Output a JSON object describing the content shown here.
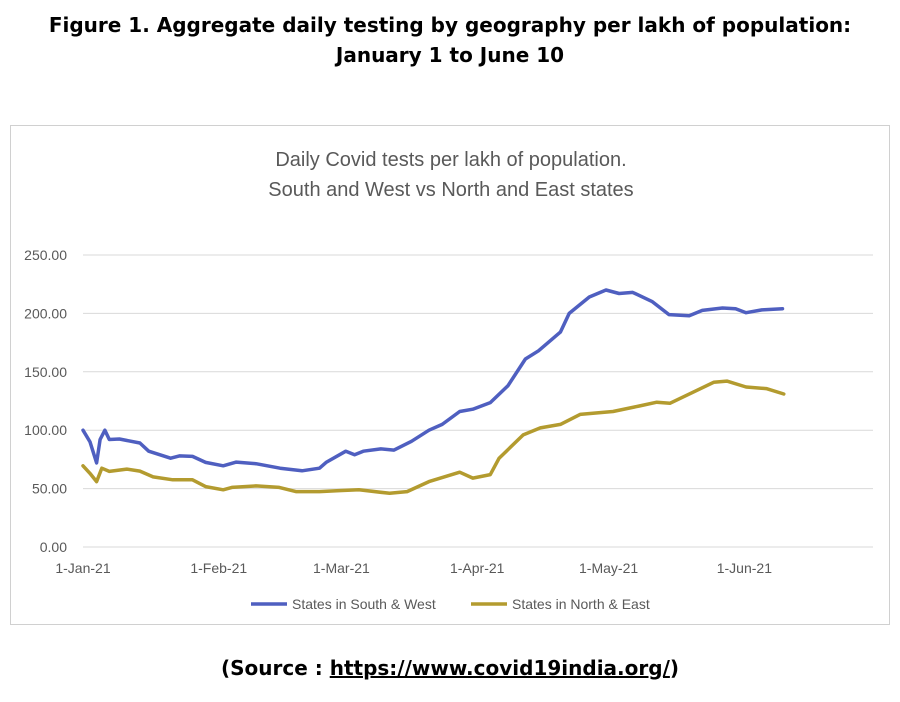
{
  "figure": {
    "title_line1": "Figure 1.  Aggregate daily testing by geography per lakh of population:",
    "title_line2": "January 1 to June 10"
  },
  "source": {
    "prefix": "(Source : ",
    "link": "https://www.covid19india.org/",
    "suffix": ")"
  },
  "chart_data": {
    "type": "line",
    "title": "Daily Covid tests per lakh of population.",
    "subtitle": "South and West vs North and East states",
    "xlabel": "",
    "ylabel": "",
    "x_unit": "days since 1-Jan-21",
    "xlim": [
      0,
      181
    ],
    "ylim": [
      0,
      250
    ],
    "grid": true,
    "legend_position": "bottom",
    "yticks": [
      0,
      50,
      100,
      150,
      200,
      250
    ],
    "ytick_labels": [
      "0.00",
      "50.00",
      "100.00",
      "150.00",
      "200.00",
      "250.00"
    ],
    "xticks": [
      0,
      31,
      59,
      90,
      120,
      151
    ],
    "xtick_labels": [
      "1-Jan-21",
      "1-Feb-21",
      "1-Mar-21",
      "1-Apr-21",
      "1-May-21",
      "1-Jun-21"
    ],
    "series": [
      {
        "name": "States in South & West",
        "color": "#4f5fc0",
        "points": [
          [
            0,
            100
          ],
          [
            1.6,
            90
          ],
          [
            3.1,
            72
          ],
          [
            3.9,
            92
          ],
          [
            5,
            100
          ],
          [
            6,
            92
          ],
          [
            8.3,
            92.5
          ],
          [
            13,
            89
          ],
          [
            15,
            82
          ],
          [
            20,
            76
          ],
          [
            22,
            78
          ],
          [
            25,
            77.6
          ],
          [
            28,
            72.4
          ],
          [
            32,
            69.5
          ],
          [
            35,
            72.7
          ],
          [
            39.5,
            71.3
          ],
          [
            45,
            67.5
          ],
          [
            50,
            65.2
          ],
          [
            54,
            67.5
          ],
          [
            55.5,
            72.4
          ],
          [
            60,
            82
          ],
          [
            62,
            79
          ],
          [
            64,
            82
          ],
          [
            68,
            84
          ],
          [
            71,
            83
          ],
          [
            75,
            90.5
          ],
          [
            79,
            100
          ],
          [
            82,
            105
          ],
          [
            86,
            116
          ],
          [
            89,
            118
          ],
          [
            93,
            123.6
          ],
          [
            97,
            138
          ],
          [
            101,
            161
          ],
          [
            104,
            168
          ],
          [
            109,
            184
          ],
          [
            111,
            200
          ],
          [
            115.6,
            214
          ],
          [
            119.4,
            220
          ],
          [
            122.4,
            217
          ],
          [
            125.5,
            218
          ],
          [
            130,
            210
          ],
          [
            133.8,
            199
          ],
          [
            138.4,
            198
          ],
          [
            141.4,
            202.6
          ],
          [
            146,
            204.6
          ],
          [
            149,
            204
          ],
          [
            151.4,
            200.6
          ],
          [
            155,
            203
          ],
          [
            159.7,
            204
          ]
        ]
      },
      {
        "name": "States in North & East",
        "color": "#b39b2f",
        "points": [
          [
            0,
            69.5
          ],
          [
            1.6,
            63
          ],
          [
            3.1,
            56
          ],
          [
            4.3,
            67.5
          ],
          [
            6,
            64.7
          ],
          [
            10,
            66.7
          ],
          [
            13,
            65
          ],
          [
            16,
            60
          ],
          [
            20.5,
            57.5
          ],
          [
            25,
            57.5
          ],
          [
            28,
            51.7
          ],
          [
            32,
            49
          ],
          [
            34,
            51
          ],
          [
            39.5,
            52.3
          ],
          [
            44.8,
            51
          ],
          [
            48.6,
            47.4
          ],
          [
            54,
            47.4
          ],
          [
            58.5,
            48.3
          ],
          [
            63,
            49
          ],
          [
            70,
            46
          ],
          [
            74,
            47.4
          ],
          [
            79,
            56
          ],
          [
            86,
            64
          ],
          [
            89,
            59
          ],
          [
            93,
            62
          ],
          [
            95,
            76
          ],
          [
            100.5,
            96
          ],
          [
            104.4,
            102
          ],
          [
            109,
            105
          ],
          [
            113.5,
            113.5
          ],
          [
            121,
            116
          ],
          [
            127,
            120.7
          ],
          [
            131,
            124
          ],
          [
            134,
            123
          ],
          [
            139,
            132
          ],
          [
            144,
            141
          ],
          [
            147,
            142
          ],
          [
            151.4,
            137
          ],
          [
            156,
            135.6
          ],
          [
            160,
            131
          ]
        ]
      }
    ]
  }
}
